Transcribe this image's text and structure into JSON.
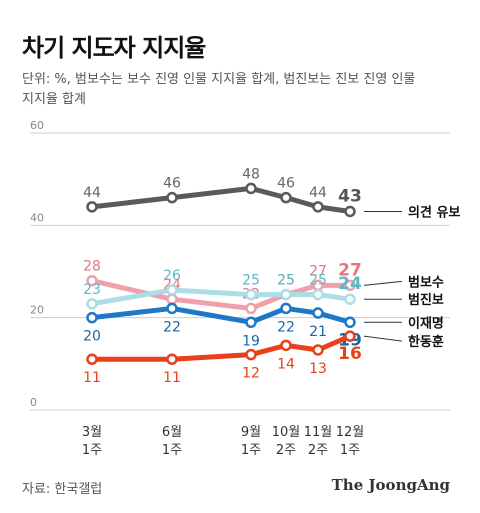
{
  "title": "차기 지도자 지지율",
  "subtitle_lines": [
    "단위: %, 범보수는 보수 진영 인물 지지율 합계, 범진보는 진보 진영 인물",
    "지지율 합계"
  ],
  "source": "자료: 한국갤럽",
  "brand": "The JoongAng",
  "chart_data": {
    "type": "line",
    "x_lines": [
      [
        "3월",
        "1주"
      ],
      [
        "6월",
        "1주"
      ],
      [
        "9월",
        "1주"
      ],
      [
        "10월",
        "2주"
      ],
      [
        "11월",
        "2주"
      ],
      [
        "12월",
        "1주"
      ]
    ],
    "ylim": [
      0,
      60
    ],
    "yticks": [
      "0",
      "20",
      "40",
      "60"
    ],
    "grid": true,
    "series": [
      {
        "name": "의견 유보",
        "values": [
          44,
          46,
          48,
          46,
          44,
          43
        ],
        "labels": [
          "44",
          "46",
          "48",
          "46",
          "44",
          "43"
        ],
        "color": "#5a5a5a",
        "label_color": "#666666",
        "last_label_color": "#555555",
        "label_pos": "above"
      },
      {
        "name": "범보수",
        "values": [
          28,
          24,
          22,
          25,
          27,
          27
        ],
        "labels": [
          "28",
          "24",
          "22",
          "25",
          "27",
          "27"
        ],
        "color": "#f0a0aa",
        "label_color": "#e8747f",
        "last_label_color": "#e8747f",
        "label_pos": "above"
      },
      {
        "name": "범진보",
        "values": [
          23,
          26,
          25,
          25,
          25,
          24
        ],
        "labels": [
          "23",
          "26",
          "25",
          "25",
          "25",
          "24"
        ],
        "color": "#aadde6",
        "label_color": "#5bb7c9",
        "last_label_color": "#5bb7c9",
        "label_pos": "above"
      },
      {
        "name": "이재명",
        "values": [
          20,
          22,
          19,
          22,
          21,
          19
        ],
        "labels": [
          "20",
          "22",
          "19",
          "22",
          "21",
          "19"
        ],
        "color": "#1f77c8",
        "label_color": "#1a64a8",
        "last_label_color": "#1a64a8",
        "label_pos": "below"
      },
      {
        "name": "한동훈",
        "values": [
          11,
          11,
          12,
          14,
          13,
          16
        ],
        "labels": [
          "11",
          "11",
          "12",
          "14",
          "13",
          "16"
        ],
        "color": "#e8401c",
        "label_color": "#e8401c",
        "last_label_color": "#e8401c",
        "label_pos": "below"
      }
    ]
  }
}
